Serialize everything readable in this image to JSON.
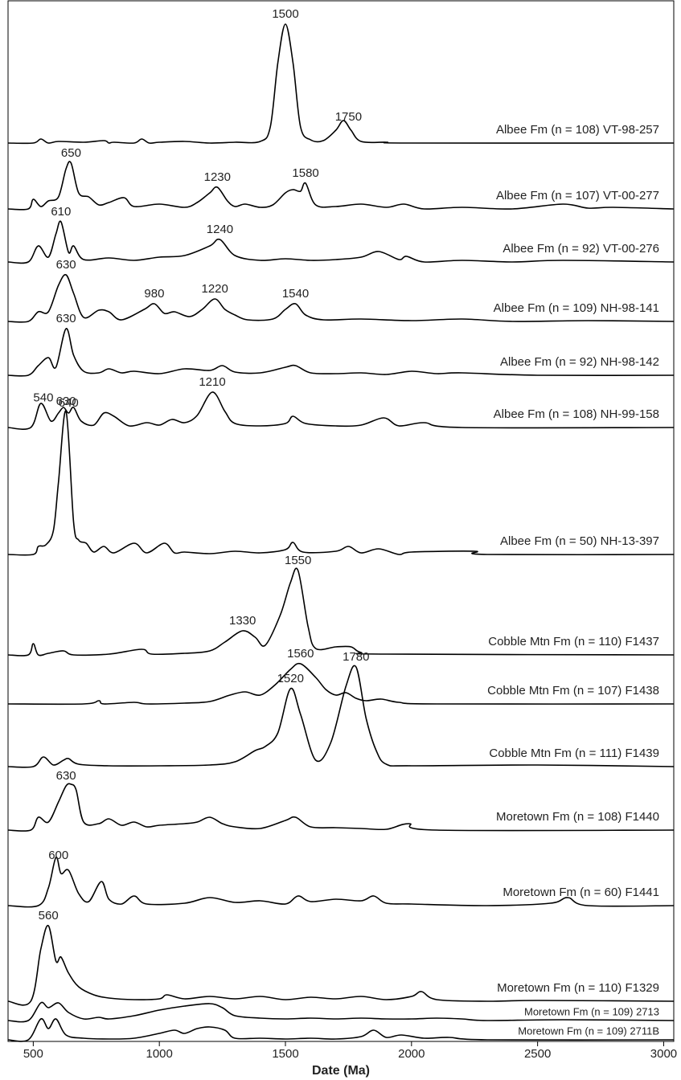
{
  "chart_data": {
    "type": "ridgeline",
    "xlabel": "Date (Ma)",
    "xlim": [
      400,
      3040
    ],
    "xticks": [
      500,
      1000,
      1500,
      2000,
      2500,
      3000
    ],
    "color": "#000000",
    "series": [
      {
        "name": "Albee Fm (n = 108) VT-98-257",
        "peaks": [
          1500,
          1750
        ],
        "x": [
          400,
          500,
          530,
          560,
          600,
          700,
          780,
          800,
          820,
          900,
          930,
          960,
          1000,
          1100,
          1200,
          1300,
          1400,
          1440,
          1470,
          1500,
          1530,
          1560,
          1600,
          1650,
          1700,
          1730,
          1760,
          1800,
          1900,
          2000,
          3040
        ],
        "values": [
          0,
          0,
          5,
          0,
          2,
          1,
          3,
          0,
          1,
          0,
          5,
          0,
          1,
          2,
          0,
          1,
          2,
          20,
          100,
          148,
          100,
          20,
          4,
          3,
          16,
          28,
          16,
          2,
          1,
          0,
          0
        ]
      },
      {
        "name": "Albee Fm (n = 107) VT-00-277",
        "peaks": [
          650,
          1230,
          1580
        ],
        "x": [
          400,
          480,
          500,
          530,
          560,
          600,
          630,
          650,
          680,
          720,
          760,
          800,
          860,
          900,
          1000,
          1100,
          1150,
          1200,
          1230,
          1270,
          1300,
          1340,
          1400,
          1450,
          1500,
          1530,
          1560,
          1580,
          1620,
          1700,
          1800,
          1900,
          1970,
          2050,
          2200,
          2400,
          2600,
          2700,
          2800,
          3040
        ],
        "values": [
          0,
          0,
          12,
          3,
          10,
          15,
          50,
          57,
          20,
          15,
          5,
          8,
          14,
          3,
          6,
          2,
          8,
          20,
          27,
          10,
          3,
          6,
          2,
          5,
          20,
          24,
          22,
          32,
          5,
          3,
          6,
          2,
          6,
          0,
          2,
          0,
          6,
          1,
          2,
          0
        ]
      },
      {
        "name": "Albee Fm (n = 92) VT-00-276",
        "peaks": [
          610,
          1240
        ],
        "x": [
          400,
          480,
          520,
          560,
          590,
          610,
          640,
          660,
          700,
          800,
          900,
          1000,
          1100,
          1200,
          1240,
          1300,
          1400,
          1500,
          1600,
          1700,
          1800,
          1870,
          1950,
          1980,
          2050,
          2200,
          2400,
          2600,
          3040
        ],
        "values": [
          0,
          0,
          20,
          6,
          35,
          50,
          12,
          20,
          3,
          5,
          2,
          6,
          8,
          20,
          28,
          8,
          2,
          4,
          2,
          3,
          6,
          13,
          3,
          7,
          0,
          2,
          0,
          2,
          0
        ]
      },
      {
        "name": "Albee Fm (n = 109) NH-98-141",
        "peaks": [
          630,
          980,
          1220,
          1540
        ],
        "x": [
          400,
          480,
          520,
          560,
          600,
          630,
          660,
          700,
          760,
          800,
          850,
          940,
          980,
          1020,
          1060,
          1120,
          1170,
          1220,
          1260,
          1300,
          1350,
          1450,
          1500,
          1540,
          1580,
          1650,
          1800,
          2000,
          2200,
          2400,
          2700,
          3040
        ],
        "values": [
          0,
          0,
          12,
          12,
          45,
          58,
          35,
          5,
          14,
          12,
          2,
          15,
          22,
          10,
          12,
          6,
          15,
          28,
          15,
          8,
          2,
          3,
          15,
          22,
          8,
          2,
          3,
          1,
          3,
          0,
          1,
          0
        ]
      },
      {
        "name": "Albee Fm (n = 92) NH-98-142",
        "peaks": [
          630
        ],
        "x": [
          400,
          480,
          520,
          560,
          590,
          630,
          660,
          700,
          760,
          800,
          850,
          900,
          1000,
          1100,
          1200,
          1250,
          1300,
          1400,
          1500,
          1540,
          1600,
          1700,
          1800,
          1900,
          2000,
          2100,
          2200,
          2500,
          3040
        ],
        "values": [
          0,
          0,
          12,
          22,
          10,
          58,
          25,
          5,
          3,
          8,
          3,
          5,
          2,
          8,
          6,
          12,
          4,
          3,
          10,
          12,
          3,
          2,
          3,
          1,
          5,
          2,
          3,
          0,
          0
        ]
      },
      {
        "name": "Albee Fm (n = 108) NH-99-158",
        "peaks": [
          540,
          640,
          1210
        ],
        "x": [
          400,
          490,
          530,
          570,
          600,
          620,
          640,
          660,
          690,
          740,
          780,
          820,
          880,
          950,
          1000,
          1050,
          1100,
          1150,
          1210,
          1260,
          1300,
          1400,
          1500,
          1530,
          1580,
          1700,
          1800,
          1890,
          1950,
          2050,
          2200,
          3040
        ],
        "values": [
          0,
          0,
          30,
          8,
          18,
          25,
          18,
          25,
          8,
          3,
          18,
          14,
          2,
          6,
          3,
          10,
          6,
          15,
          44,
          20,
          5,
          2,
          5,
          14,
          5,
          2,
          3,
          12,
          2,
          6,
          0,
          0
        ]
      },
      {
        "name": "Albee Fm (n = 50) NH-13-397",
        "peaks": [
          630
        ],
        "x": [
          400,
          500,
          520,
          550,
          580,
          600,
          630,
          660,
          680,
          710,
          740,
          780,
          820,
          900,
          950,
          1020,
          1060,
          1100,
          1200,
          1300,
          1400,
          1500,
          1530,
          1570,
          1700,
          1750,
          1800,
          1870,
          1950,
          2000,
          2250,
          2300,
          3040
        ],
        "values": [
          0,
          0,
          10,
          12,
          30,
          90,
          178,
          40,
          18,
          14,
          3,
          10,
          2,
          14,
          2,
          14,
          2,
          3,
          1,
          4,
          2,
          6,
          15,
          3,
          4,
          10,
          2,
          7,
          0,
          3,
          4,
          0,
          0
        ]
      },
      {
        "name": "Cobble Mtn Fm (n = 110) F1437",
        "peaks": [
          1330,
          1550
        ],
        "x": [
          400,
          480,
          500,
          520,
          560,
          620,
          660,
          800,
          930,
          970,
          1100,
          1200,
          1260,
          1330,
          1380,
          1420,
          1480,
          1520,
          1550,
          1590,
          1620,
          1700,
          1760,
          1800,
          1900,
          3040
        ],
        "values": [
          0,
          0,
          14,
          0,
          2,
          5,
          0,
          1,
          7,
          1,
          2,
          5,
          16,
          30,
          22,
          12,
          50,
          90,
          105,
          35,
          8,
          10,
          10,
          3,
          1,
          0
        ]
      },
      {
        "name": "Cobble Mtn Fm (n = 107) F1438",
        "peaks": [
          1560
        ],
        "x": [
          400,
          700,
          760,
          780,
          900,
          950,
          1100,
          1200,
          1280,
          1340,
          1400,
          1460,
          1520,
          1560,
          1620,
          1660,
          1700,
          1740,
          1780,
          1820,
          1880,
          1950,
          2100,
          3040
        ],
        "values": [
          0,
          0,
          4,
          0,
          2,
          0,
          1,
          3,
          11,
          15,
          11,
          24,
          43,
          50,
          33,
          18,
          11,
          14,
          7,
          4,
          6,
          2,
          0,
          0
        ]
      },
      {
        "name": "Cobble Mtn Fm (n = 111) F1439",
        "peaks": [
          1520,
          1780
        ],
        "x": [
          400,
          500,
          540,
          580,
          620,
          640,
          680,
          800,
          1000,
          1200,
          1300,
          1380,
          1420,
          1470,
          1520,
          1560,
          1620,
          1680,
          1740,
          1780,
          1820,
          1860,
          1900,
          2000,
          2500,
          3040
        ],
        "values": [
          0,
          0,
          12,
          2,
          8,
          10,
          3,
          1,
          1,
          2,
          6,
          20,
          25,
          42,
          97,
          65,
          8,
          30,
          100,
          124,
          60,
          20,
          3,
          1,
          2,
          0
        ]
      },
      {
        "name": "Moretown Fm (n = 108) F1440",
        "peaks": [
          630
        ],
        "x": [
          400,
          490,
          520,
          560,
          600,
          630,
          650,
          670,
          700,
          760,
          800,
          850,
          900,
          950,
          1000,
          1100,
          1150,
          1200,
          1250,
          1300,
          1400,
          1500,
          1540,
          1600,
          1700,
          1800,
          1900,
          1990,
          2100,
          3040
        ],
        "values": [
          0,
          0,
          16,
          10,
          35,
          55,
          57,
          50,
          10,
          8,
          14,
          6,
          10,
          4,
          6,
          8,
          10,
          16,
          8,
          4,
          2,
          12,
          16,
          4,
          3,
          2,
          1,
          8,
          0,
          0
        ]
      },
      {
        "name": "Moretown Fm (n = 60) F1441",
        "peaks": [
          600
        ],
        "x": [
          400,
          520,
          560,
          590,
          610,
          640,
          680,
          720,
          770,
          800,
          850,
          900,
          950,
          1100,
          1200,
          1300,
          1400,
          1500,
          1550,
          1600,
          1700,
          1800,
          1850,
          1900,
          2000,
          2300,
          2550,
          2620,
          2700,
          3040
        ],
        "values": [
          0,
          0,
          22,
          60,
          40,
          44,
          15,
          5,
          30,
          8,
          2,
          12,
          2,
          3,
          10,
          4,
          6,
          2,
          12,
          5,
          8,
          6,
          12,
          3,
          2,
          0,
          3,
          10,
          0,
          0
        ]
      },
      {
        "name": "Moretown Fm (n = 110) F1329",
        "peaks": [
          560
        ],
        "x": [
          400,
          490,
          530,
          560,
          590,
          610,
          640,
          680,
          740,
          800,
          900,
          1000,
          1030,
          1100,
          1200,
          1300,
          1400,
          1500,
          1600,
          1700,
          1800,
          1900,
          2000,
          2040,
          2100,
          2300,
          2500,
          3040
        ],
        "values": [
          0,
          0,
          65,
          94,
          50,
          55,
          35,
          18,
          8,
          4,
          2,
          3,
          8,
          3,
          6,
          3,
          6,
          2,
          5,
          3,
          6,
          2,
          6,
          12,
          2,
          0,
          1,
          0
        ]
      },
      {
        "name": "Moretown Fm (n = 109) 2713",
        "peaks": [],
        "x": [
          400,
          480,
          530,
          560,
          600,
          640,
          700,
          760,
          800,
          900,
          1000,
          1100,
          1200,
          1250,
          1300,
          1400,
          1500,
          1600,
          1700,
          1800,
          1900,
          2000,
          2100,
          2200,
          2300,
          2600,
          3040
        ],
        "values": [
          0,
          0,
          22,
          16,
          22,
          10,
          2,
          4,
          2,
          6,
          13,
          18,
          21,
          16,
          6,
          3,
          2,
          3,
          2,
          3,
          2,
          2,
          3,
          2,
          0,
          1,
          0
        ]
      },
      {
        "name": "Moretown Fm (n = 109) 2711B",
        "peaks": [],
        "x": [
          400,
          480,
          530,
          560,
          590,
          630,
          700,
          800,
          900,
          1000,
          1060,
          1100,
          1150,
          1200,
          1260,
          1300,
          1400,
          1500,
          1600,
          1700,
          1800,
          1850,
          1900,
          1960,
          2050,
          2150,
          2300,
          3040
        ],
        "values": [
          0,
          0,
          26,
          14,
          26,
          6,
          2,
          1,
          2,
          8,
          12,
          8,
          14,
          16,
          12,
          2,
          2,
          1,
          2,
          1,
          4,
          12,
          3,
          6,
          2,
          3,
          0,
          0
        ]
      }
    ]
  }
}
